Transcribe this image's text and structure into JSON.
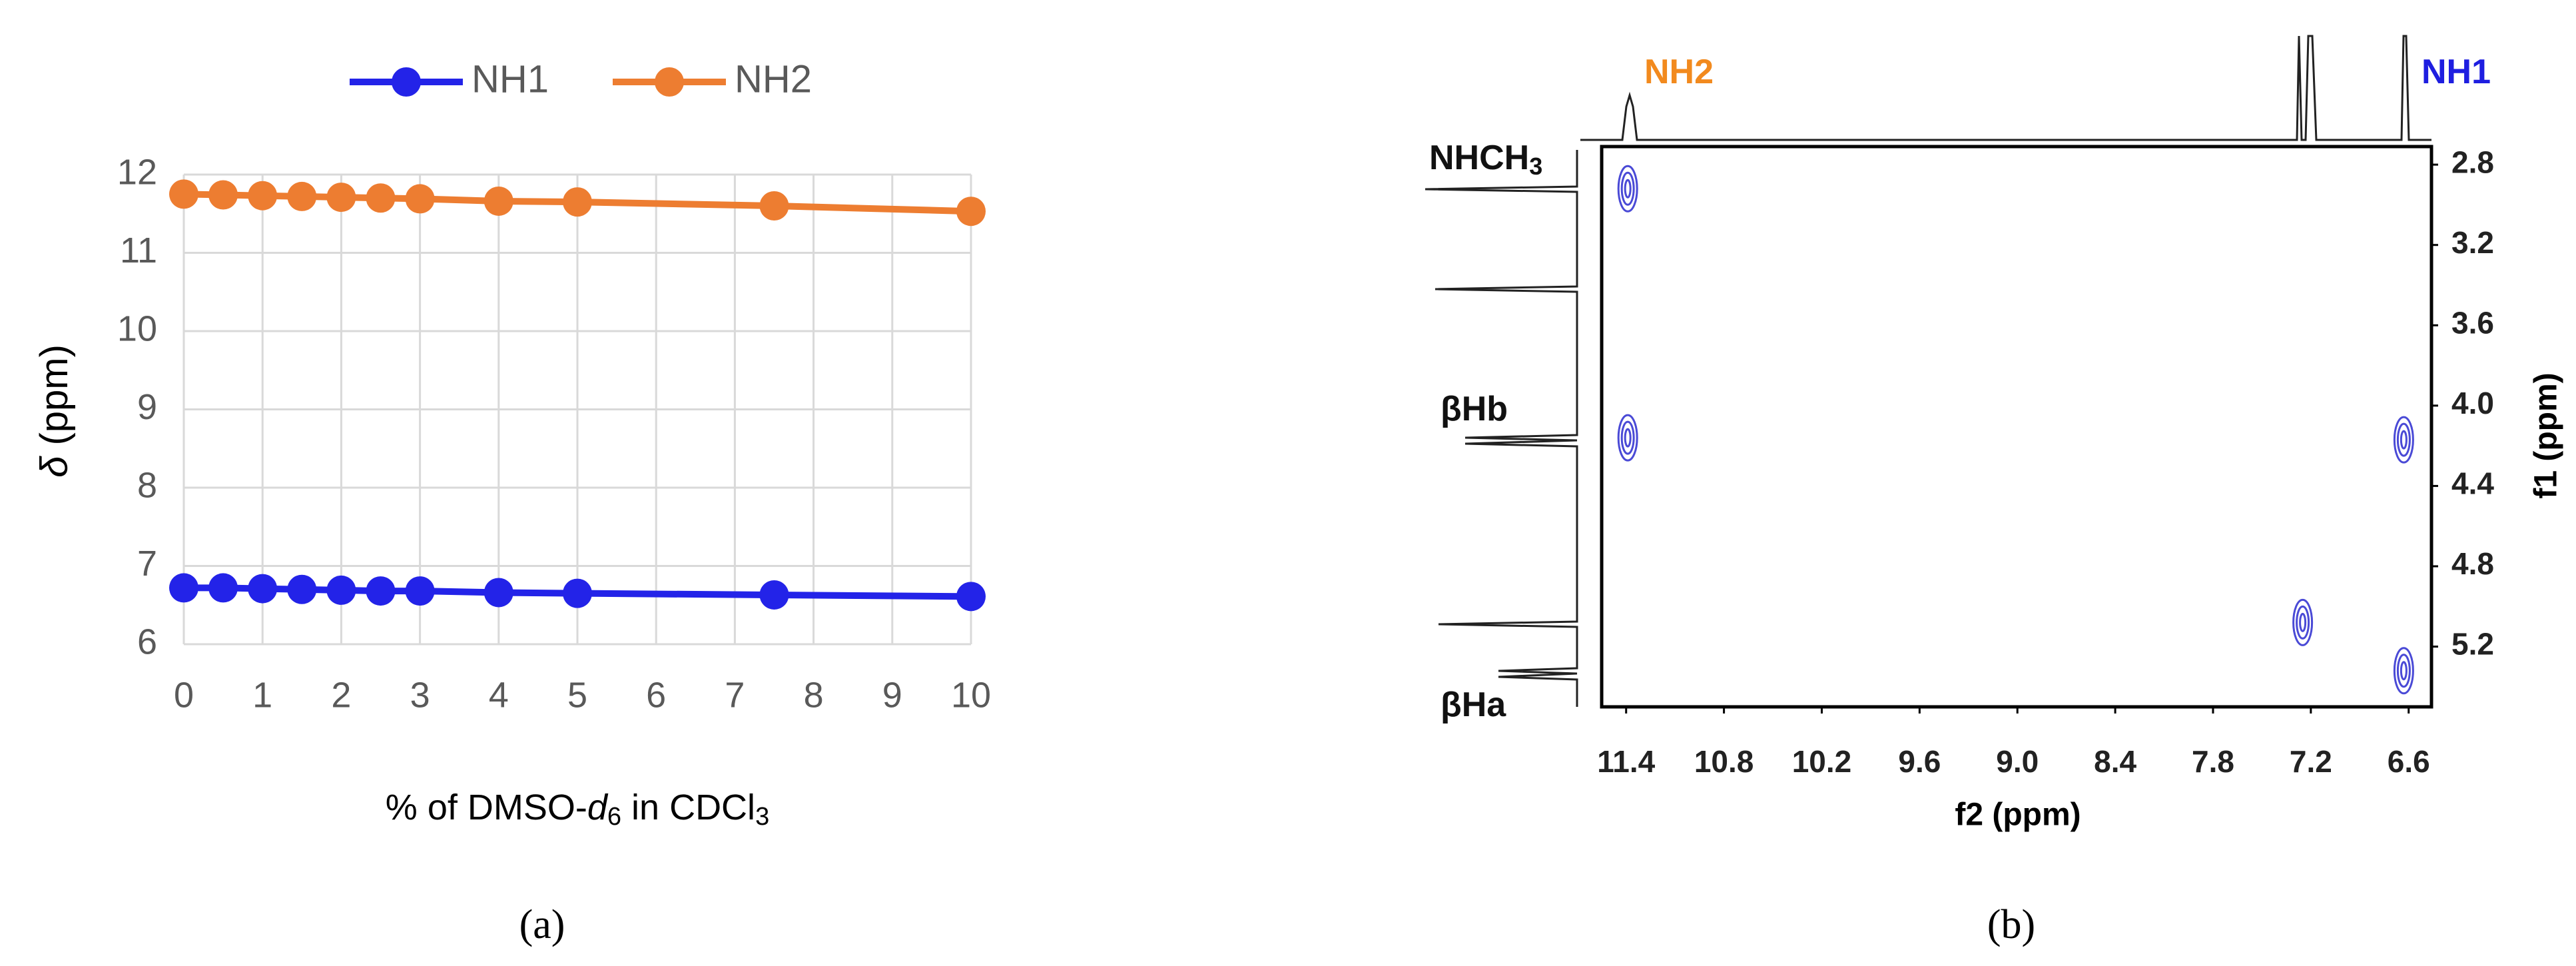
{
  "chart_data": [
    {
      "type": "line",
      "x_label": [
        "% of DMSO-",
        "d",
        "6",
        " in CDCl",
        "3"
      ],
      "y_label": [
        "δ",
        " (ppm)"
      ],
      "panel_label": "(a)",
      "x": [
        0,
        0.5,
        1,
        1.5,
        2,
        2.5,
        3,
        4,
        5,
        7.5,
        10
      ],
      "series": [
        {
          "name": "NH1",
          "color": "#2323e8",
          "values": [
            6.72,
            6.72,
            6.71,
            6.7,
            6.69,
            6.68,
            6.68,
            6.66,
            6.65,
            6.63,
            6.61
          ]
        },
        {
          "name": "NH2",
          "color": "#ed7d31",
          "values": [
            11.75,
            11.74,
            11.73,
            11.72,
            11.71,
            11.7,
            11.69,
            11.66,
            11.65,
            11.6,
            11.53
          ]
        }
      ],
      "xlim": [
        0,
        10
      ],
      "xticks": [
        0,
        1,
        2,
        3,
        4,
        5,
        6,
        7,
        8,
        9,
        10
      ],
      "ylim": [
        6,
        12
      ],
      "yticks": [
        6,
        7,
        8,
        9,
        10,
        11,
        12
      ],
      "grid": true,
      "legend": "top"
    },
    {
      "type": "contour",
      "x_label": "f2 (ppm)",
      "y_label": "f1 (ppm)",
      "panel_label": "(b)",
      "points": {
        "color": "#4a4ad6",
        "x": [
          11.39,
          11.39,
          7.25,
          6.63,
          6.63
        ],
        "y": [
          2.92,
          4.16,
          5.08,
          4.17,
          5.32
        ]
      },
      "xlim": [
        11.55,
        6.46
      ],
      "xticks": [
        11.4,
        10.8,
        10.2,
        9.6,
        {
          "value": 9,
          "label": "9.0"
        },
        8.4,
        7.8,
        7.2,
        6.6
      ],
      "ylim": [
        5.5,
        2.71
      ],
      "yticks": [
        2.8,
        3.2,
        3.6,
        {
          "value": 4,
          "label": "4.0"
        },
        4.4,
        4.8,
        5.2
      ],
      "annotations": [
        {
          "text": "NH2",
          "color": "#f28a1e"
        },
        {
          "text": "NH1",
          "color": "#1e1ee0"
        },
        {
          "text": "NHCH",
          "sub": "3",
          "color": "#111111"
        },
        {
          "text": "βHb",
          "color": "#111111"
        },
        {
          "text": "βHa",
          "color": "#111111"
        }
      ]
    }
  ]
}
